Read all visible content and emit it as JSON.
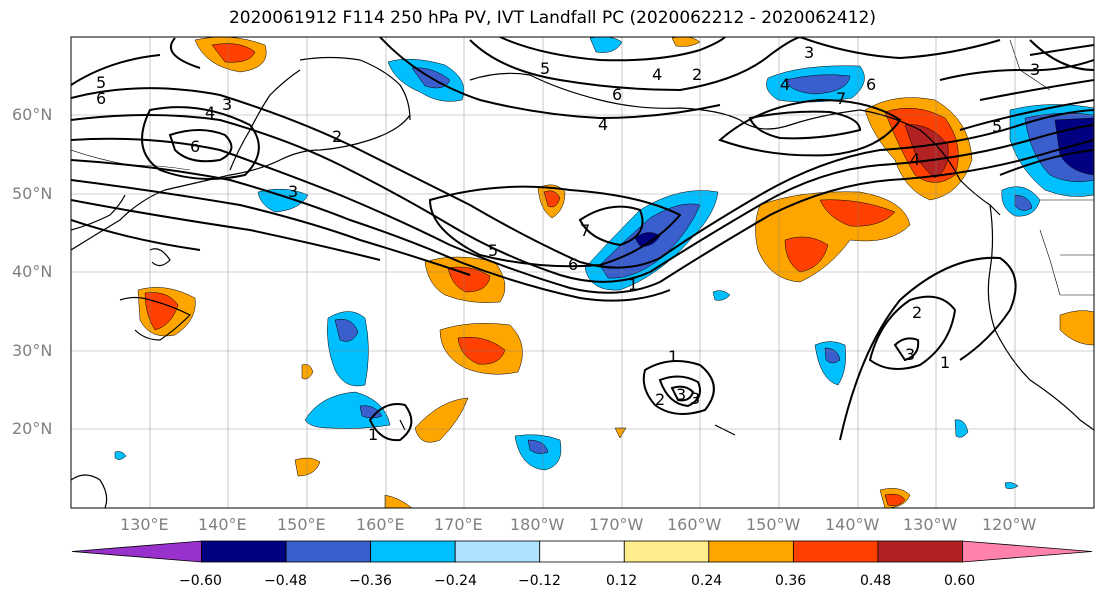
{
  "title": "2020061912 F114 250 hPa PV, IVT Landfall PC (2020062212 - 2020062412)",
  "lat_labels": [
    "60°N",
    "50°N",
    "40°N",
    "30°N",
    "20°N"
  ],
  "lon_labels": [
    "130°E",
    "140°E",
    "150°E",
    "160°E",
    "170°E",
    "180°W",
    "170°W",
    "160°W",
    "150°W",
    "140°W",
    "130°W",
    "120°W"
  ],
  "colorbar": {
    "ticks": [
      "−0.60",
      "−0.48",
      "−0.36",
      "−0.24",
      "−0.12",
      "0.12",
      "0.24",
      "0.36",
      "0.48",
      "0.60"
    ],
    "colors": [
      "#9932CC",
      "#000080",
      "#3A5FCD",
      "#00BFFF",
      "#B0E2FF",
      "#FFFFFF",
      "#FFEC8B",
      "#FFA500",
      "#FF4000",
      "#B22222",
      "#FF82AB"
    ]
  },
  "contour_labels": [
    "5",
    "6",
    "4",
    "3",
    "2",
    "3",
    "6",
    "5",
    "6",
    "4",
    "3",
    "7",
    "6",
    "5",
    "1",
    "4",
    "7",
    "6",
    "5",
    "4",
    "3",
    "2",
    "1",
    "3",
    "1",
    "2",
    "3",
    "2",
    "3",
    "4",
    "1"
  ]
}
